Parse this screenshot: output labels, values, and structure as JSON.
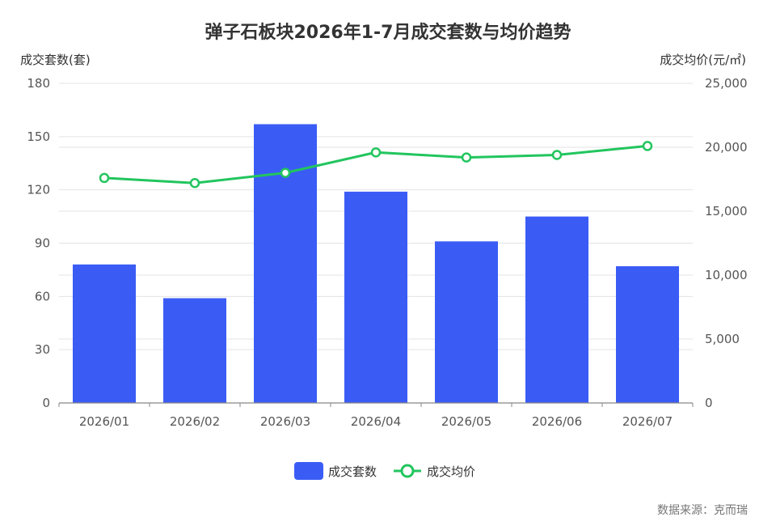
{
  "chart_data": {
    "type": "bar",
    "title": "弹子石板块2026年1-7月成交套数与均价趋势",
    "categories": [
      "2026/01",
      "2026/02",
      "2026/03",
      "2026/04",
      "2026/05",
      "2026/06",
      "2026/07"
    ],
    "series": [
      {
        "name": "成交套数",
        "type": "bar",
        "axis": "left",
        "color": "#3a5cf5",
        "values": [
          78,
          59,
          157,
          119,
          91,
          105,
          77
        ]
      },
      {
        "name": "成交均价",
        "type": "line",
        "axis": "right",
        "color": "#22c55e",
        "values": [
          17600,
          17200,
          18000,
          19600,
          19200,
          19400,
          20100
        ]
      }
    ],
    "y_left": {
      "label": "成交套数(套)",
      "range": [
        0,
        180
      ],
      "ticks": [
        "0",
        "30",
        "60",
        "90",
        "120",
        "150",
        "180"
      ]
    },
    "y_right": {
      "label": "成交均价(元/㎡)",
      "range": [
        0,
        25000
      ],
      "ticks": [
        "0",
        "5,000",
        "10,000",
        "15,000",
        "20,000",
        "25,000"
      ]
    },
    "grid": true,
    "legend_position": "bottom-center"
  },
  "source_note": "数据来源：克而瑞"
}
